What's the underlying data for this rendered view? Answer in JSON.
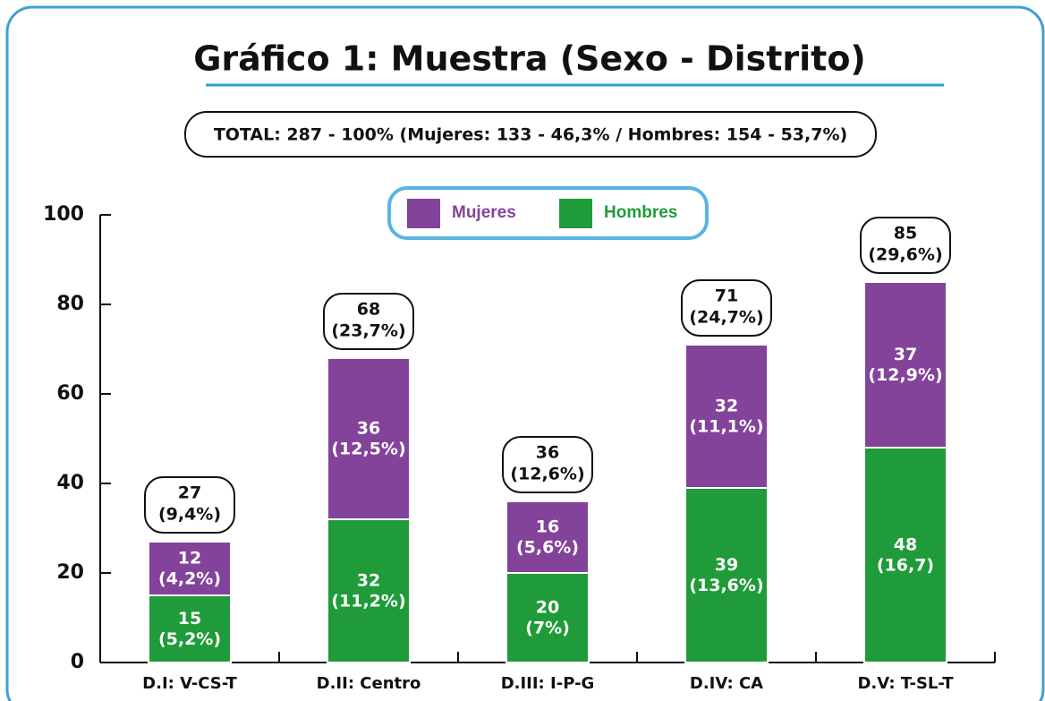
{
  "chart_data": {
    "type": "stacked_bar",
    "title": "Gráfico 1: Muestra (Sexo - Distrito)",
    "subtitle": "TOTAL: 287 - 100% (Mujeres: 133 - 46,3% / Hombres: 154 - 53,7%)",
    "categories": [
      "D.I: V-CS-T",
      "D.II: Centro",
      "D.III: I-P-G",
      "D.IV: CA",
      "D.V: T-SL-T"
    ],
    "series": [
      {
        "name": "Hombres",
        "color": "#1f9b3a",
        "values": [
          15,
          32,
          20,
          39,
          48
        ],
        "value_labels": [
          [
            "15",
            "(5,2%)"
          ],
          [
            "32",
            "(11,2%)"
          ],
          [
            "20",
            "(7%)"
          ],
          [
            "39",
            "(13,6%)"
          ],
          [
            "48",
            "(16,7)"
          ]
        ]
      },
      {
        "name": "Mujeres",
        "color": "#84439a",
        "values": [
          12,
          36,
          16,
          32,
          37
        ],
        "value_labels": [
          [
            "12",
            "(4,2%)"
          ],
          [
            "36",
            "(12,5%)"
          ],
          [
            "16",
            "(5,6%)"
          ],
          [
            "32",
            "(11,1%)"
          ],
          [
            "37",
            "(12,9%)"
          ]
        ]
      }
    ],
    "totals": [
      27,
      68,
      36,
      71,
      85
    ],
    "total_labels": [
      [
        "27",
        "(9,4%)"
      ],
      [
        "68",
        "(23,7%)"
      ],
      [
        "36",
        "(12,6%)"
      ],
      [
        "71",
        "(24,7%)"
      ],
      [
        "85",
        "(29,6%)"
      ]
    ],
    "legend_order": [
      "Mujeres",
      "Hombres"
    ],
    "ylim": [
      0,
      100
    ],
    "yticks": [
      0,
      20,
      40,
      60,
      80,
      100
    ],
    "grid": false
  }
}
